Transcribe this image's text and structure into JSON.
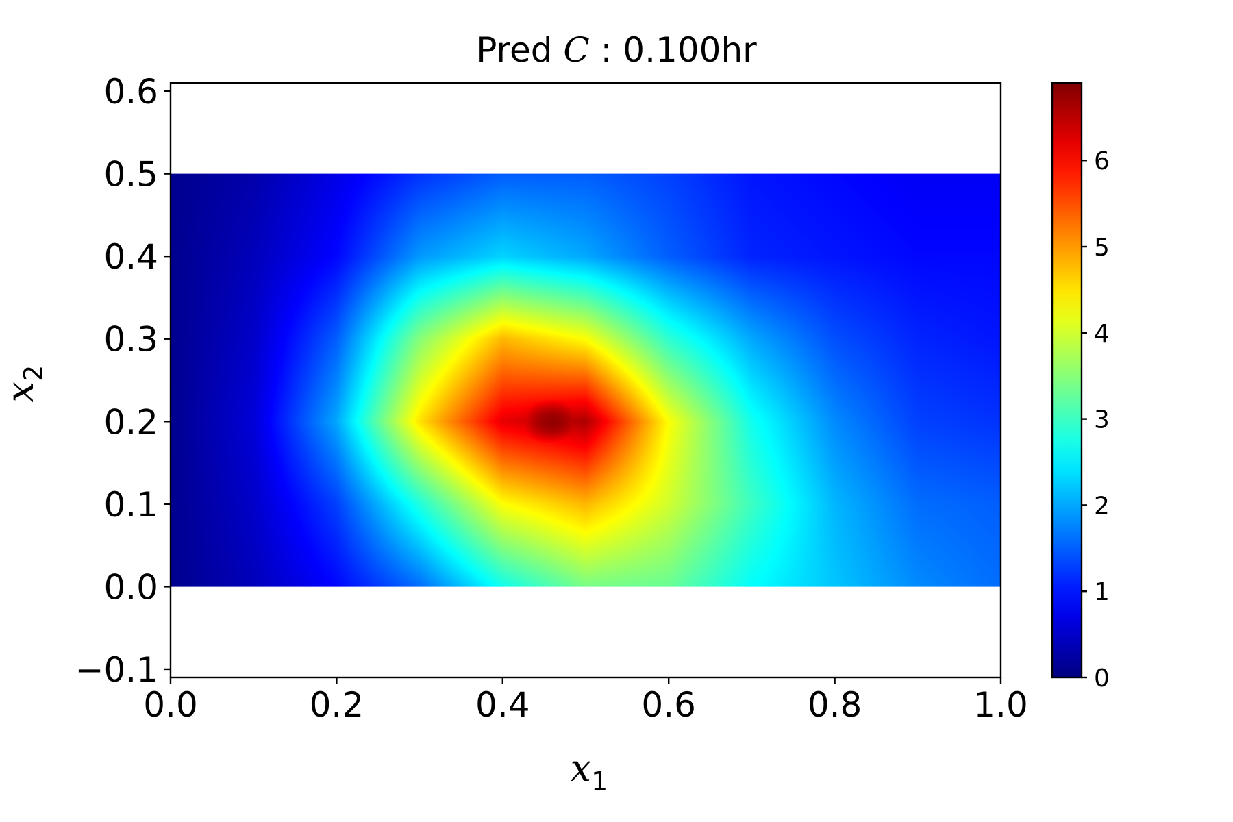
{
  "chart_data": {
    "type": "heatmap",
    "title": {
      "prefix": "Pred ",
      "variable": "C",
      "suffix": " :  0.100hr"
    },
    "xlabel": {
      "symbol": "x",
      "subscript": "1"
    },
    "ylabel": {
      "symbol": "x",
      "subscript": "2"
    },
    "xlim": [
      0.0,
      1.0
    ],
    "ylim": [
      -0.11,
      0.61
    ],
    "x_ticks": [
      {
        "value": 0.0,
        "label": "0.0"
      },
      {
        "value": 0.2,
        "label": "0.2"
      },
      {
        "value": 0.4,
        "label": "0.4"
      },
      {
        "value": 0.6,
        "label": "0.6"
      },
      {
        "value": 0.8,
        "label": "0.8"
      },
      {
        "value": 1.0,
        "label": "1.0"
      }
    ],
    "y_ticks": [
      {
        "value": -0.1,
        "label": "−0.1"
      },
      {
        "value": 0.0,
        "label": "0.0"
      },
      {
        "value": 0.1,
        "label": "0.1"
      },
      {
        "value": 0.2,
        "label": "0.2"
      },
      {
        "value": 0.3,
        "label": "0.3"
      },
      {
        "value": 0.4,
        "label": "0.4"
      },
      {
        "value": 0.5,
        "label": "0.5"
      },
      {
        "value": 0.6,
        "label": "0.6"
      }
    ],
    "field_extent": {
      "x": [
        0.0,
        1.0
      ],
      "y": [
        0.0,
        0.5
      ]
    },
    "colormap": "jet",
    "colorbar": {
      "range": [
        0.0,
        6.9
      ],
      "ticks": [
        {
          "value": 0,
          "label": "0"
        },
        {
          "value": 1,
          "label": "1"
        },
        {
          "value": 2,
          "label": "2"
        },
        {
          "value": 3,
          "label": "3"
        },
        {
          "value": 4,
          "label": "4"
        },
        {
          "value": 5,
          "label": "5"
        },
        {
          "value": 6,
          "label": "6"
        }
      ]
    },
    "peak": {
      "x": 0.46,
      "y": 0.2,
      "value": 6.9
    },
    "field_samples": {
      "x": [
        0.0,
        0.1,
        0.2,
        0.3,
        0.4,
        0.5,
        0.6,
        0.7,
        0.8,
        0.9,
        1.0
      ],
      "y": [
        0.5,
        0.4,
        0.3,
        0.2,
        0.1,
        0.0
      ],
      "z": [
        [
          0.1,
          0.3,
          0.7,
          1.2,
          1.5,
          1.5,
          1.3,
          1.0,
          0.9,
          0.8,
          0.8
        ],
        [
          0.1,
          0.4,
          0.9,
          1.9,
          2.3,
          2.0,
          1.5,
          1.1,
          1.0,
          0.9,
          0.9
        ],
        [
          0.1,
          0.5,
          1.5,
          3.5,
          4.8,
          4.3,
          2.9,
          2.0,
          1.4,
          1.1,
          1.0
        ],
        [
          0.1,
          0.6,
          2.0,
          4.5,
          6.2,
          6.6,
          4.3,
          2.7,
          1.8,
          1.3,
          1.2
        ],
        [
          0.1,
          0.5,
          1.3,
          2.8,
          4.3,
          4.8,
          4.0,
          3.0,
          2.1,
          1.6,
          1.5
        ],
        [
          0.1,
          0.4,
          0.9,
          1.6,
          2.7,
          3.4,
          3.3,
          2.6,
          2.2,
          1.8,
          1.6
        ]
      ]
    }
  },
  "colors": {
    "axis": "#000000",
    "background": "#ffffff"
  }
}
